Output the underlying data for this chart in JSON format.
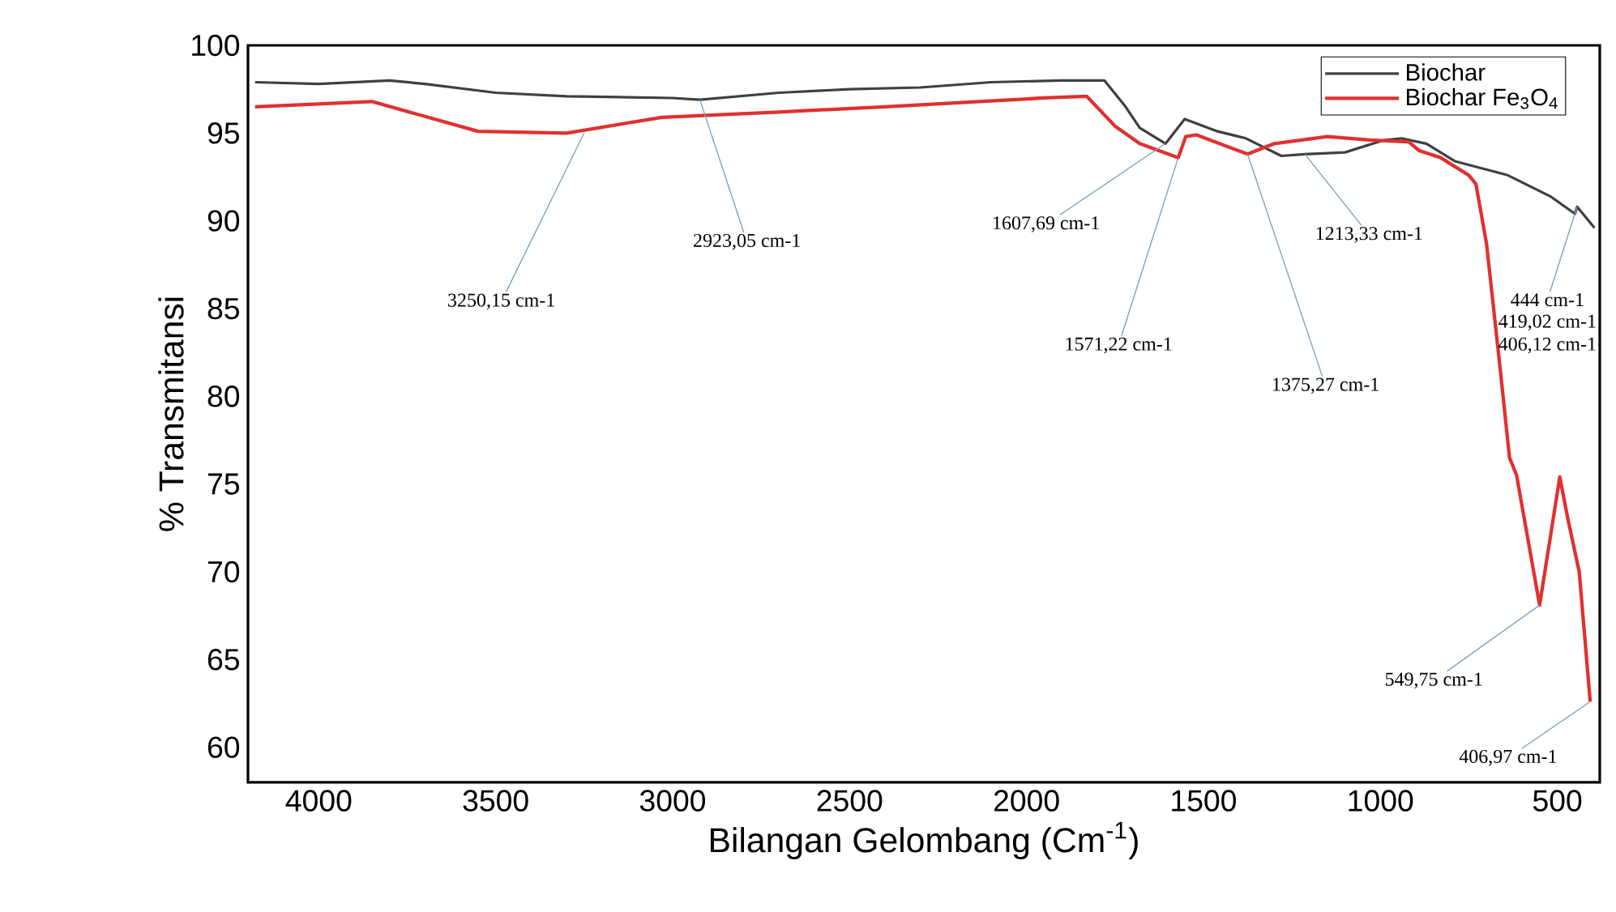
{
  "chart_data": {
    "type": "line",
    "xlabel": "Bilangan Gelombang (Cm$^{-1}$)",
    "ylabel": "% Transmitansi",
    "xlim": [
      4200,
      380
    ],
    "ylim": [
      58,
      100
    ],
    "xticks": [
      4000,
      3500,
      3000,
      2500,
      2000,
      1500,
      1000,
      500
    ],
    "yticks": [
      60,
      65,
      70,
      75,
      80,
      85,
      90,
      95,
      100
    ],
    "legend": "top right",
    "grid": false,
    "marker": "none",
    "line_style": "solid",
    "series": [
      {
        "name": "Biochar",
        "color": "#404040",
        "x": [
          4180,
          4000,
          3800,
          3700,
          3500,
          3300,
          3000,
          2923,
          2700,
          2500,
          2300,
          2100,
          1900,
          1780,
          1720,
          1680,
          1607,
          1553,
          1460,
          1380,
          1280,
          1213,
          1100,
          990,
          940,
          870,
          790,
          640,
          520,
          450,
          444,
          395
        ],
        "values": [
          97.9,
          97.8,
          98.0,
          97.8,
          97.3,
          97.1,
          97.0,
          96.9,
          97.3,
          97.5,
          97.6,
          97.9,
          98.0,
          98.0,
          96.5,
          95.3,
          94.4,
          95.8,
          95.1,
          94.7,
          93.7,
          93.8,
          93.9,
          94.6,
          94.7,
          94.4,
          93.4,
          92.6,
          91.4,
          90.4,
          90.8,
          89.6
        ]
      },
      {
        "name": "Biochar Fe$_{3}$O$_{4}$",
        "color": "#e03030",
        "x": [
          4180,
          3850,
          3550,
          3300,
          3030,
          2700,
          2400,
          1950,
          1830,
          1750,
          1680,
          1571,
          1550,
          1520,
          1375,
          1300,
          1150,
          1030,
          920,
          890,
          830,
          750,
          730,
          700,
          660,
          635,
          615,
          550,
          493,
          470,
          438,
          407
        ],
        "values": [
          96.5,
          96.8,
          95.1,
          95.0,
          95.9,
          96.2,
          96.5,
          97.0,
          97.1,
          95.4,
          94.4,
          93.6,
          94.8,
          94.9,
          93.8,
          94.4,
          94.8,
          94.6,
          94.5,
          94.0,
          93.6,
          92.6,
          92.1,
          88.7,
          81.3,
          76.5,
          75.5,
          68.1,
          75.4,
          73.0,
          70.0,
          62.6
        ]
      }
    ],
    "annotations": [
      {
        "text": "3250,15 cm-1",
        "x": 3250.15,
        "y": 95.0
      },
      {
        "text": "2923,05 cm-1",
        "x": 2923.05,
        "y": 96.9
      },
      {
        "text": "1607,69 cm-1",
        "x": 1607.69,
        "y": 94.4
      },
      {
        "text": "1571,22 cm-1",
        "x": 1571.22,
        "y": 93.6
      },
      {
        "text": "1375,27 cm-1",
        "x": 1375.27,
        "y": 93.8
      },
      {
        "text": "1213,33 cm-1",
        "x": 1213.33,
        "y": 93.8
      },
      {
        "text": "444 cm-1",
        "x": 444,
        "y": 90.8
      },
      "419,02 cm-1",
      "406,12 cm-1",
      {
        "text": "549,75 cm-1",
        "x": 549.75,
        "y": 68.1
      },
      {
        "text": "406,97 cm-1",
        "x": 406.97,
        "y": 62.6
      }
    ]
  }
}
